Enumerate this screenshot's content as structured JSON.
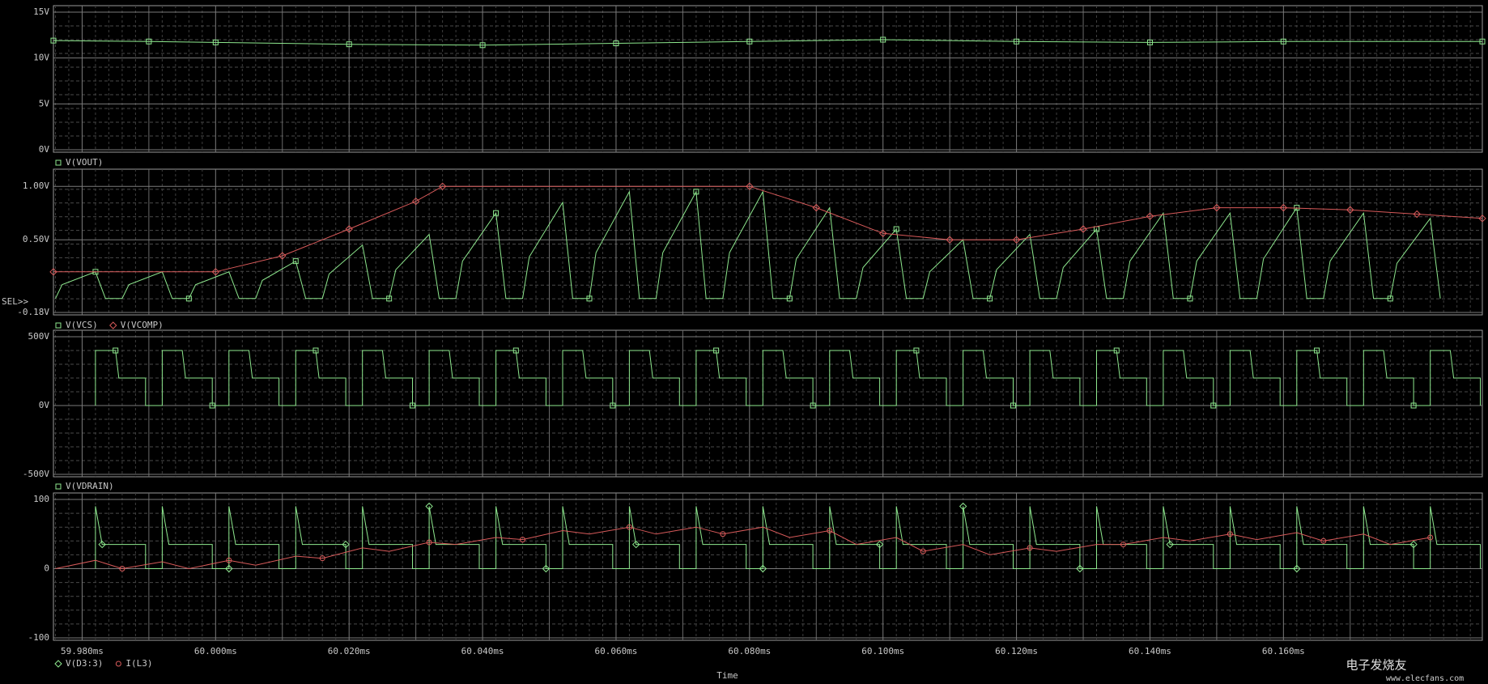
{
  "chart_data": [
    {
      "type": "line",
      "ylim": [
        0,
        15
      ],
      "yticks": [
        {
          "value": 15,
          "label": "15V"
        },
        {
          "value": 10,
          "label": "10V"
        },
        {
          "value": 5,
          "label": "5V"
        },
        {
          "value": 0,
          "label": "0V"
        }
      ],
      "series": [
        {
          "name": "V(VOUT)",
          "color": "#8ee88e",
          "marker": "square",
          "x": [
            59.9757,
            59.99,
            60.0,
            60.02,
            60.04,
            60.06,
            60.08,
            60.1,
            60.12,
            60.14,
            60.16,
            60.1898
          ],
          "values": [
            11.9,
            11.8,
            11.7,
            11.5,
            11.4,
            11.6,
            11.8,
            12.0,
            11.8,
            11.7,
            11.8,
            11.8
          ]
        }
      ]
    },
    {
      "type": "line",
      "ylim": [
        -0.18,
        1.1
      ],
      "selector": "SEL>>",
      "yticks": [
        {
          "value": 1.0,
          "label": "1.00V"
        },
        {
          "value": 0.5,
          "label": "0.50V"
        },
        {
          "value": -0.18,
          "label": "-0.18V"
        }
      ],
      "series": [
        {
          "name": "V(VCS)",
          "color": "#8ee88e",
          "marker": "square",
          "x": [
            59.976,
            59.977,
            59.982,
            59.9835,
            59.986,
            59.987,
            59.992,
            59.9935,
            59.996,
            59.997,
            60.002,
            60.0035,
            60.006,
            60.007,
            60.012,
            60.0135,
            60.016,
            60.017,
            60.022,
            60.0235,
            60.026,
            60.027,
            60.032,
            60.0335,
            60.036,
            60.037,
            60.042,
            60.0435,
            60.046,
            60.047,
            60.052,
            60.0535,
            60.056,
            60.057,
            60.062,
            60.0635,
            60.066,
            60.067,
            60.072,
            60.0735,
            60.076,
            60.077,
            60.082,
            60.0835,
            60.086,
            60.087,
            60.092,
            60.0935,
            60.096,
            60.097,
            60.102,
            60.1035,
            60.106,
            60.107,
            60.112,
            60.1135,
            60.116,
            60.117,
            60.122,
            60.1235,
            60.126,
            60.127,
            60.132,
            60.1335,
            60.136,
            60.137,
            60.142,
            60.1435,
            60.146,
            60.147,
            60.152,
            60.1535,
            60.156,
            60.157,
            60.162,
            60.1635,
            60.166,
            60.167,
            60.172,
            60.1735,
            60.176,
            60.177,
            60.182,
            60.1835
          ],
          "values": [
            -0.05,
            0.08,
            0.2,
            -0.05,
            -0.05,
            0.08,
            0.2,
            -0.05,
            -0.05,
            0.08,
            0.2,
            -0.05,
            -0.05,
            0.12,
            0.3,
            -0.05,
            -0.05,
            0.18,
            0.45,
            -0.05,
            -0.05,
            0.22,
            0.55,
            -0.05,
            -0.05,
            0.3,
            0.75,
            -0.05,
            -0.05,
            0.34,
            0.85,
            -0.05,
            -0.05,
            0.38,
            0.95,
            -0.05,
            -0.05,
            0.38,
            0.95,
            -0.05,
            -0.05,
            0.38,
            0.95,
            -0.05,
            -0.05,
            0.32,
            0.8,
            -0.05,
            -0.05,
            0.24,
            0.6,
            -0.05,
            -0.05,
            0.2,
            0.5,
            -0.05,
            -0.05,
            0.22,
            0.55,
            -0.05,
            -0.05,
            0.24,
            0.6,
            -0.05,
            -0.05,
            0.3,
            0.75,
            -0.05,
            -0.05,
            0.3,
            0.75,
            -0.05,
            -0.05,
            0.32,
            0.8,
            -0.05,
            -0.05,
            0.3,
            0.75,
            -0.05,
            -0.05,
            0.28,
            0.7,
            -0.05
          ]
        },
        {
          "name": "V(VCOMP)",
          "color": "#d85a5a",
          "marker": "diamond",
          "x": [
            59.9757,
            60.0,
            60.01,
            60.02,
            60.03,
            60.034,
            60.08,
            60.09,
            60.1,
            60.11,
            60.12,
            60.13,
            60.14,
            60.15,
            60.16,
            60.17,
            60.18,
            60.1898
          ],
          "values": [
            0.2,
            0.2,
            0.35,
            0.6,
            0.86,
            1.0,
            1.0,
            0.8,
            0.56,
            0.5,
            0.5,
            0.6,
            0.72,
            0.8,
            0.8,
            0.78,
            0.74,
            0.7
          ]
        }
      ]
    },
    {
      "type": "line",
      "ylim": [
        -500,
        500
      ],
      "yticks": [
        {
          "value": 500,
          "label": "500V"
        },
        {
          "value": 0,
          "label": "0V"
        },
        {
          "value": -500,
          "label": "-500V"
        }
      ],
      "series": [
        {
          "name": "V(VDRAIN)",
          "color": "#8ee88e",
          "marker": "square",
          "x": [
            59.982,
            59.982,
            59.985,
            59.9855,
            59.9895,
            59.9895,
            59.992,
            59.992,
            59.995,
            59.9955,
            59.9995,
            59.9995,
            60.002,
            60.002,
            60.005,
            60.0055,
            60.0095,
            60.0095,
            60.012,
            60.012,
            60.015,
            60.0155,
            60.0195,
            60.0195,
            60.022,
            60.022,
            60.025,
            60.0255,
            60.0295,
            60.0295,
            60.032,
            60.032,
            60.035,
            60.0355,
            60.0395,
            60.0395,
            60.042,
            60.042,
            60.045,
            60.0455,
            60.0495,
            60.0495,
            60.052,
            60.052,
            60.055,
            60.0555,
            60.0595,
            60.0595,
            60.062,
            60.062,
            60.065,
            60.0655,
            60.0695,
            60.0695,
            60.072,
            60.072,
            60.075,
            60.0755,
            60.0795,
            60.0795,
            60.082,
            60.082,
            60.085,
            60.0855,
            60.0895,
            60.0895,
            60.092,
            60.092,
            60.095,
            60.0955,
            60.0995,
            60.0995,
            60.102,
            60.102,
            60.105,
            60.1055,
            60.1095,
            60.1095,
            60.112,
            60.112,
            60.115,
            60.1155,
            60.1195,
            60.1195,
            60.122,
            60.122,
            60.125,
            60.1255,
            60.1295,
            60.1295,
            60.132,
            60.132,
            60.135,
            60.1355,
            60.1395,
            60.1395,
            60.142,
            60.142,
            60.145,
            60.1455,
            60.1495,
            60.1495,
            60.152,
            60.152,
            60.155,
            60.1555,
            60.1595,
            60.1595,
            60.162,
            60.162,
            60.165,
            60.1655,
            60.1695,
            60.1695,
            60.172,
            60.172,
            60.175,
            60.1755,
            60.1795,
            60.1795,
            60.182,
            60.182,
            60.185,
            60.1855,
            60.1895,
            60.1895
          ],
          "values": [
            0,
            400,
            400,
            200,
            200,
            0,
            0,
            400,
            400,
            200,
            200,
            0,
            0,
            400,
            400,
            200,
            200,
            0,
            0,
            400,
            400,
            200,
            200,
            0,
            0,
            400,
            400,
            200,
            200,
            0,
            0,
            400,
            400,
            200,
            200,
            0,
            0,
            400,
            400,
            200,
            200,
            0,
            0,
            400,
            400,
            200,
            200,
            0,
            0,
            400,
            400,
            200,
            200,
            0,
            0,
            400,
            400,
            200,
            200,
            0,
            0,
            400,
            400,
            200,
            200,
            0,
            0,
            400,
            400,
            200,
            200,
            0,
            0,
            400,
            400,
            200,
            200,
            0,
            0,
            400,
            400,
            200,
            200,
            0,
            0,
            400,
            400,
            200,
            200,
            0,
            0,
            400,
            400,
            200,
            200,
            0,
            0,
            400,
            400,
            200,
            200,
            0,
            0,
            400,
            400,
            200,
            200,
            0,
            0,
            400,
            400,
            200,
            200,
            0,
            0,
            400,
            400,
            200,
            200,
            0,
            0,
            400,
            400,
            200,
            200,
            0
          ]
        }
      ]
    },
    {
      "type": "line",
      "ylim": [
        -100,
        100
      ],
      "yticks": [
        100,
        0,
        -100
      ],
      "xlim": [
        59.9757,
        60.1898
      ],
      "xlabel": "Time",
      "xticks": [
        {
          "value": 59.98,
          "label": "59.980ms"
        },
        {
          "value": 60.0,
          "label": "60.000ms"
        },
        {
          "value": 60.02,
          "label": "60.020ms"
        },
        {
          "value": 60.04,
          "label": "60.040ms"
        },
        {
          "value": 60.06,
          "label": "60.060ms"
        },
        {
          "value": 60.08,
          "label": "60.080ms"
        },
        {
          "value": 60.1,
          "label": "60.100ms"
        },
        {
          "value": 60.12,
          "label": "60.120ms"
        },
        {
          "value": 60.14,
          "label": "60.140ms"
        },
        {
          "value": 60.16,
          "label": "60.160ms"
        }
      ],
      "series": [
        {
          "name": "V(D3:3)",
          "color": "#8ee88e",
          "marker": "diamond",
          "x": [
            59.982,
            59.982,
            59.983,
            59.9895,
            59.9895,
            59.992,
            59.992,
            59.993,
            59.9995,
            59.9995,
            60.002,
            60.002,
            60.003,
            60.0095,
            60.0095,
            60.012,
            60.012,
            60.013,
            60.0195,
            60.0195,
            60.022,
            60.022,
            60.023,
            60.0295,
            60.0295,
            60.032,
            60.032,
            60.033,
            60.0395,
            60.0395,
            60.042,
            60.042,
            60.043,
            60.0495,
            60.0495,
            60.052,
            60.052,
            60.053,
            60.0595,
            60.0595,
            60.062,
            60.062,
            60.063,
            60.0695,
            60.0695,
            60.072,
            60.072,
            60.073,
            60.0795,
            60.0795,
            60.082,
            60.082,
            60.083,
            60.0895,
            60.0895,
            60.092,
            60.092,
            60.093,
            60.0995,
            60.0995,
            60.102,
            60.102,
            60.103,
            60.1095,
            60.1095,
            60.112,
            60.112,
            60.113,
            60.1195,
            60.1195,
            60.122,
            60.122,
            60.123,
            60.1295,
            60.1295,
            60.132,
            60.132,
            60.133,
            60.1395,
            60.1395,
            60.142,
            60.142,
            60.143,
            60.1495,
            60.1495,
            60.152,
            60.152,
            60.153,
            60.1595,
            60.1595,
            60.162,
            60.162,
            60.163,
            60.1695,
            60.1695,
            60.172,
            60.172,
            60.173,
            60.1795,
            60.1795,
            60.182,
            60.182,
            60.183,
            60.1895,
            60.1895
          ],
          "values": [
            0,
            90,
            35,
            35,
            0,
            0,
            90,
            35,
            35,
            0,
            0,
            90,
            35,
            35,
            0,
            0,
            90,
            35,
            35,
            0,
            0,
            90,
            35,
            35,
            0,
            0,
            90,
            35,
            35,
            0,
            0,
            90,
            35,
            35,
            0,
            0,
            90,
            35,
            35,
            0,
            0,
            90,
            35,
            35,
            0,
            0,
            90,
            35,
            35,
            0,
            0,
            90,
            35,
            35,
            0,
            0,
            90,
            35,
            35,
            0,
            0,
            90,
            35,
            35,
            0,
            0,
            90,
            35,
            35,
            0,
            0,
            90,
            35,
            35,
            0,
            0,
            90,
            35,
            35,
            0,
            0,
            90,
            35,
            35,
            0,
            0,
            90,
            35,
            35,
            0,
            0,
            90,
            35,
            35,
            0,
            0,
            90,
            35,
            35,
            0,
            0,
            90,
            35,
            35,
            0
          ]
        },
        {
          "name": "I(L3)",
          "color": "#d85a5a",
          "marker": "circle",
          "x": [
            59.976,
            59.982,
            59.986,
            59.992,
            59.996,
            60.002,
            60.006,
            60.012,
            60.016,
            60.022,
            60.026,
            60.032,
            60.036,
            60.042,
            60.046,
            60.052,
            60.056,
            60.062,
            60.066,
            60.072,
            60.076,
            60.082,
            60.086,
            60.092,
            60.096,
            60.102,
            60.106,
            60.112,
            60.116,
            60.122,
            60.126,
            60.132,
            60.136,
            60.142,
            60.146,
            60.152,
            60.156,
            60.162,
            60.166,
            60.172,
            60.176,
            60.182
          ],
          "values": [
            0,
            12,
            0,
            10,
            0,
            12,
            5,
            18,
            15,
            30,
            25,
            38,
            35,
            45,
            42,
            55,
            50,
            60,
            50,
            60,
            50,
            60,
            45,
            55,
            35,
            45,
            25,
            35,
            20,
            30,
            25,
            35,
            35,
            45,
            40,
            50,
            42,
            52,
            40,
            50,
            35,
            45
          ]
        }
      ]
    }
  ],
  "watermark": {
    "text": "电子发烧友",
    "url": "www.elecfans.com"
  }
}
